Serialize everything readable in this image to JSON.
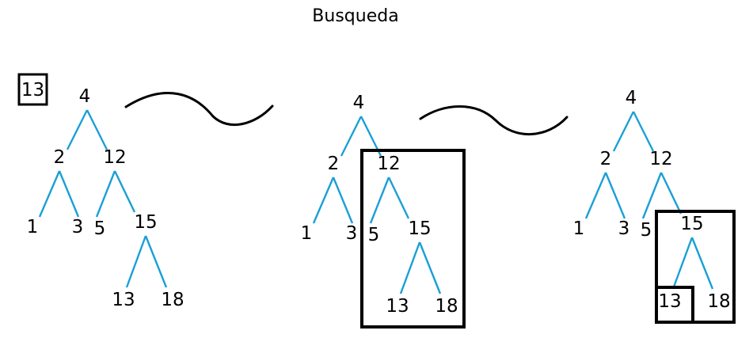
{
  "title": "Busqueda",
  "search_value": "13",
  "colors": {
    "edge": "#1a9fd6",
    "text": "#000000",
    "box": "#000000"
  },
  "tree": {
    "nodes": [
      "4",
      "2",
      "12",
      "1",
      "3",
      "5",
      "15",
      "13",
      "18"
    ],
    "edges": [
      [
        "4",
        "2"
      ],
      [
        "4",
        "12"
      ],
      [
        "2",
        "1"
      ],
      [
        "2",
        "3"
      ],
      [
        "12",
        "5"
      ],
      [
        "12",
        "15"
      ],
      [
        "15",
        "13"
      ],
      [
        "15",
        "18"
      ]
    ]
  },
  "steps": [
    {
      "label": "step-1",
      "highlight": []
    },
    {
      "label": "step-2",
      "highlight": [
        "12"
      ]
    },
    {
      "label": "step-3",
      "highlight": [
        "15",
        "13"
      ]
    }
  ],
  "transitions": [
    "arrow-1",
    "arrow-2"
  ]
}
